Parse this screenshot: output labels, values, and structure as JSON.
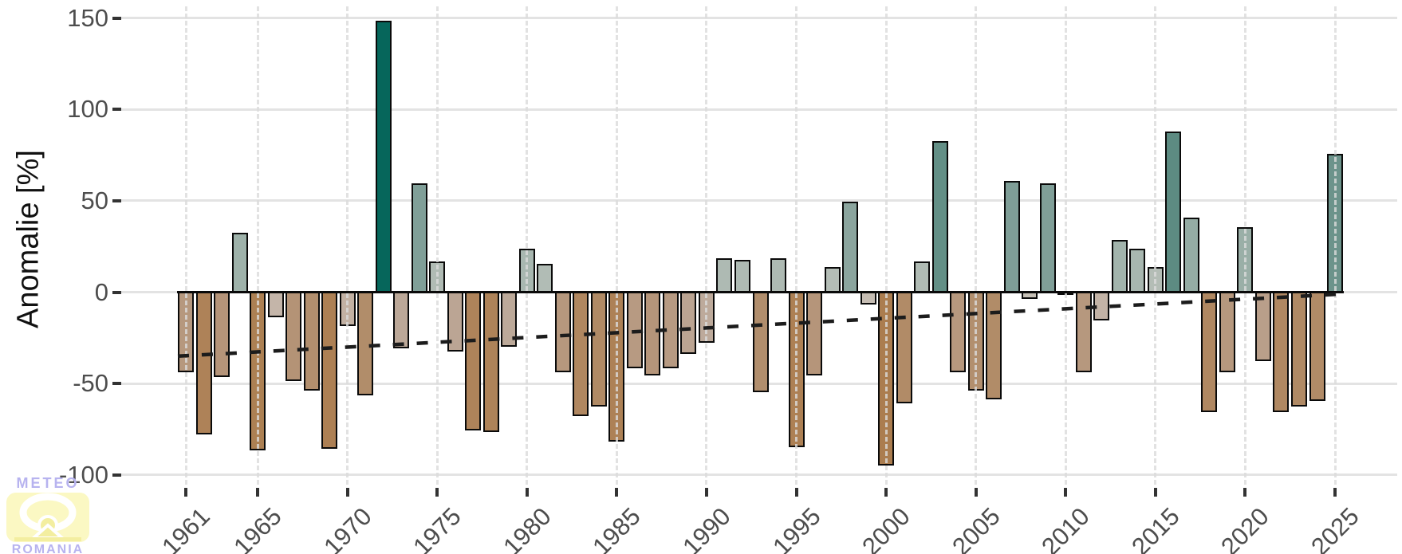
{
  "chart_data": {
    "type": "bar",
    "title": "",
    "ylabel": "Anomalie [%]",
    "xlabel": "",
    "ylim": [
      -100,
      150
    ],
    "grid": "on",
    "legend": "none",
    "y_ticks": [
      150,
      100,
      50,
      0,
      -50,
      -100
    ],
    "x_ticks": [
      1961,
      1965,
      1970,
      1975,
      1980,
      1985,
      1990,
      1995,
      2000,
      2005,
      2010,
      2015,
      2020,
      2025
    ],
    "years": [
      1961,
      1962,
      1963,
      1964,
      1965,
      1966,
      1967,
      1968,
      1969,
      1970,
      1971,
      1972,
      1973,
      1974,
      1975,
      1976,
      1977,
      1978,
      1979,
      1980,
      1981,
      1982,
      1983,
      1984,
      1985,
      1986,
      1987,
      1988,
      1989,
      1990,
      1991,
      1992,
      1993,
      1994,
      1995,
      1996,
      1997,
      1998,
      1999,
      2000,
      2001,
      2002,
      2003,
      2004,
      2005,
      2006,
      2007,
      2008,
      2009,
      2010,
      2011,
      2012,
      2013,
      2014,
      2015,
      2016,
      2017,
      2018,
      2019,
      2020,
      2021,
      2022,
      2023,
      2024,
      2025
    ],
    "values": [
      -43,
      -77,
      -46,
      32,
      -86,
      -13,
      -48,
      -53,
      -85,
      -18,
      -56,
      148,
      -30,
      59,
      16,
      -32,
      -75,
      -76,
      -29,
      23,
      15,
      -43,
      -67,
      -62,
      -81,
      -41,
      -45,
      -41,
      -33,
      -27,
      18,
      17,
      -54,
      18,
      -84,
      -45,
      13,
      49,
      -6,
      -94,
      -60,
      16,
      82,
      -43,
      -53,
      -58,
      60,
      -3,
      59,
      -1,
      -43,
      -15,
      28,
      23,
      13,
      87,
      40,
      -65,
      -43,
      35,
      -37,
      -65,
      -62,
      -59,
      75
    ],
    "trend_line": {
      "style": "dashed",
      "start_year": 1961,
      "start_value": -35,
      "end_year": 2025,
      "end_value": -1
    }
  },
  "colors": {
    "background": "#ffffff",
    "bar_border": "#0a0a0a",
    "zero_line": "#0a0a0a",
    "trend_line": "#1c1c1c",
    "grid_major": "#e3e3e3",
    "grid_vertical": "#dcdcdc",
    "tick_text": "#4d4d4d",
    "axis_title_text": "#111111",
    "scale_anchors": [
      {
        "v": 150,
        "c": "#03655a"
      },
      {
        "v": 87,
        "c": "#5d8b82"
      },
      {
        "v": 60,
        "c": "#7f9e97"
      },
      {
        "v": 45,
        "c": "#8fa8a0"
      },
      {
        "v": 30,
        "c": "#a0b3ab"
      },
      {
        "v": 15,
        "c": "#b1bcb5"
      },
      {
        "v": 5,
        "c": "#bfc0ba"
      },
      {
        "v": 0,
        "c": "#c7c2ba"
      },
      {
        "v": -5,
        "c": "#c6beb4"
      },
      {
        "v": -15,
        "c": "#c3b3a6"
      },
      {
        "v": -30,
        "c": "#bca898"
      },
      {
        "v": -45,
        "c": "#b5957a"
      },
      {
        "v": -55,
        "c": "#b18d6b"
      },
      {
        "v": -65,
        "c": "#b08862"
      },
      {
        "v": -78,
        "c": "#ae8257"
      },
      {
        "v": -88,
        "c": "#ac7f52"
      },
      {
        "v": -100,
        "c": "#aa7b4b"
      }
    ]
  },
  "branding": {
    "logo_top": "METEO",
    "logo_bottom": "ROMANIA",
    "logo_text_color": "#b7b3ef",
    "logo_emblem_color": "#fbf8c3",
    "logo_emblem_inner": "#f3eea0"
  }
}
